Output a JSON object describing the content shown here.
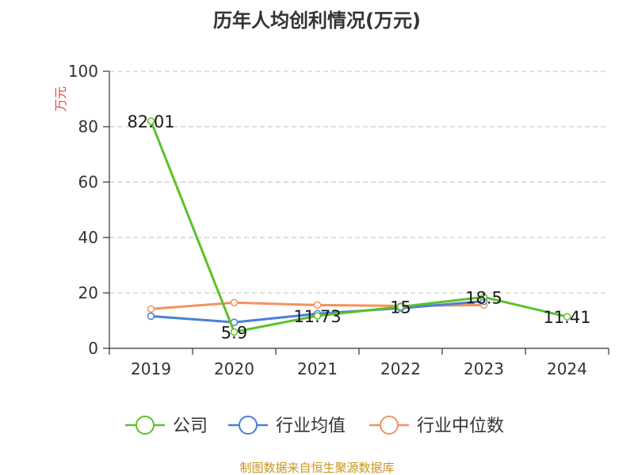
{
  "chart_data": {
    "type": "line",
    "title": "历年人均创利情况(万元)",
    "ylabel": "万元",
    "xlabel": "",
    "categories": [
      "2019",
      "2020",
      "2021",
      "2022",
      "2023",
      "2024"
    ],
    "ylim": [
      0,
      100
    ],
    "yticks": [
      0,
      20,
      40,
      60,
      80,
      100
    ],
    "grid": true,
    "legend_position": "bottom",
    "series": [
      {
        "name": "公司",
        "color": "#5cc128",
        "values": [
          82.01,
          5.9,
          11.73,
          15,
          18.5,
          11.41
        ],
        "labels": [
          "82.01",
          "5.9",
          "11.73",
          "15",
          "18.5",
          "11.41"
        ]
      },
      {
        "name": "行业均值",
        "color": "#4a7fd6",
        "values": [
          11.6,
          9.4,
          12.5,
          14.5,
          17.0,
          null
        ]
      },
      {
        "name": "行业中位数",
        "color": "#f4925f",
        "values": [
          14.2,
          16.5,
          15.6,
          15.3,
          15.6,
          null
        ]
      }
    ]
  },
  "source_text": "制图数据来自恒生聚源数据库"
}
